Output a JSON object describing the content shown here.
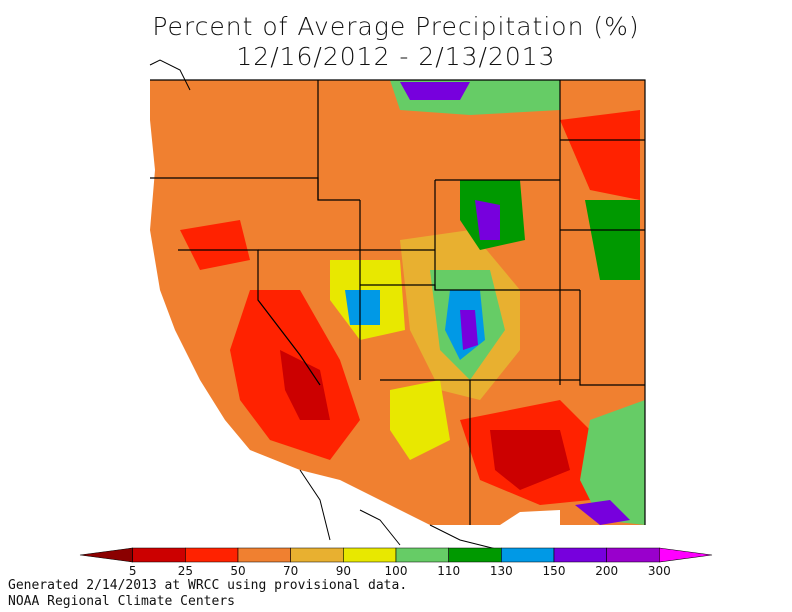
{
  "title": "Percent of Average Precipitation (%)",
  "period": "12/16/2012 - 2/13/2013",
  "legend": {
    "ticks": [
      "5",
      "25",
      "50",
      "70",
      "90",
      "100",
      "110",
      "130",
      "150",
      "200",
      "300"
    ],
    "colors": [
      "#8b0000",
      "#cc0000",
      "#ff2200",
      "#f08030",
      "#e8b030",
      "#e8e800",
      "#66cc66",
      "#009900",
      "#0099e6",
      "#7700dd",
      "#9900cc",
      "#ff00ff"
    ]
  },
  "footer": {
    "line1": "Generated 2/14/2013 at WRCC using provisional data.",
    "line2": "NOAA Regional Climate Centers"
  }
}
